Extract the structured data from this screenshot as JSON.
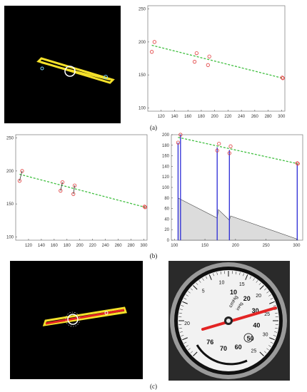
{
  "figure": {
    "label_a": "(a)",
    "label_b": "(b)",
    "label_c": "(c)"
  },
  "colors": {
    "needle_yellow": "#f5e12a",
    "fit_green": "#3fbf3f",
    "point_red": "#e03b3b",
    "vline_blue": "#2a2ad6",
    "needle_red": "#e32424"
  },
  "gauge": {
    "unit_top": "cmHg",
    "unit_bottom": "inHg",
    "outer_ticks": [
      "5",
      "10",
      "15",
      "20",
      "25",
      "30",
      "25"
    ],
    "inner_ticks": [
      "10",
      "20",
      "30",
      "40",
      "50",
      "60",
      "70",
      "76"
    ],
    "outer_left": "20"
  },
  "chart_data": [
    {
      "id": "a-right",
      "type": "scatter",
      "xlim": [
        100,
        305
      ],
      "ylim": [
        95,
        255
      ],
      "xticks": [
        120,
        140,
        160,
        180,
        200,
        220,
        240,
        260,
        280,
        300
      ],
      "yticks": [
        100,
        150,
        200,
        250
      ],
      "points": [
        [
          106,
          185
        ],
        [
          110,
          200
        ],
        [
          170,
          170
        ],
        [
          173,
          183
        ],
        [
          190,
          165
        ],
        [
          192,
          178
        ],
        [
          301,
          146
        ],
        [
          302,
          145
        ]
      ],
      "fit": [
        [
          106,
          195
        ],
        [
          302,
          145
        ]
      ]
    },
    {
      "id": "b-left",
      "type": "scatter",
      "xlim": [
        100,
        305
      ],
      "ylim": [
        95,
        255
      ],
      "xticks": [
        120,
        140,
        160,
        180,
        200,
        220,
        240,
        260,
        280,
        300
      ],
      "yticks": [
        100,
        150,
        200,
        250
      ],
      "points": [
        [
          106,
          185
        ],
        [
          110,
          200
        ],
        [
          170,
          170
        ],
        [
          173,
          183
        ],
        [
          190,
          165
        ],
        [
          192,
          178
        ],
        [
          301,
          146
        ],
        [
          302,
          145
        ]
      ],
      "fit": [
        [
          106,
          195
        ],
        [
          302,
          145
        ]
      ]
    },
    {
      "id": "b-right",
      "type": "line",
      "xlim": [
        95,
        310
      ],
      "ylim": [
        0,
        200
      ],
      "xticks": [
        100,
        150,
        200,
        250,
        300
      ],
      "yticks": [
        0,
        20,
        40,
        60,
        80,
        100,
        120,
        140,
        160,
        180,
        200
      ],
      "points": [
        [
          106,
          185
        ],
        [
          110,
          200
        ],
        [
          170,
          170
        ],
        [
          173,
          183
        ],
        [
          190,
          165
        ],
        [
          192,
          178
        ],
        [
          301,
          146
        ],
        [
          302,
          145
        ]
      ],
      "fit": [
        [
          106,
          195
        ],
        [
          302,
          145
        ]
      ],
      "vlines": [
        [
          106,
          185
        ],
        [
          110,
          200
        ],
        [
          170,
          176
        ],
        [
          190,
          171
        ],
        [
          301,
          145
        ]
      ],
      "area": [
        [
          106,
          80
        ],
        [
          170,
          42
        ],
        [
          172,
          58
        ],
        [
          190,
          38
        ],
        [
          192,
          46
        ],
        [
          301,
          2
        ],
        [
          302,
          0
        ]
      ]
    }
  ]
}
